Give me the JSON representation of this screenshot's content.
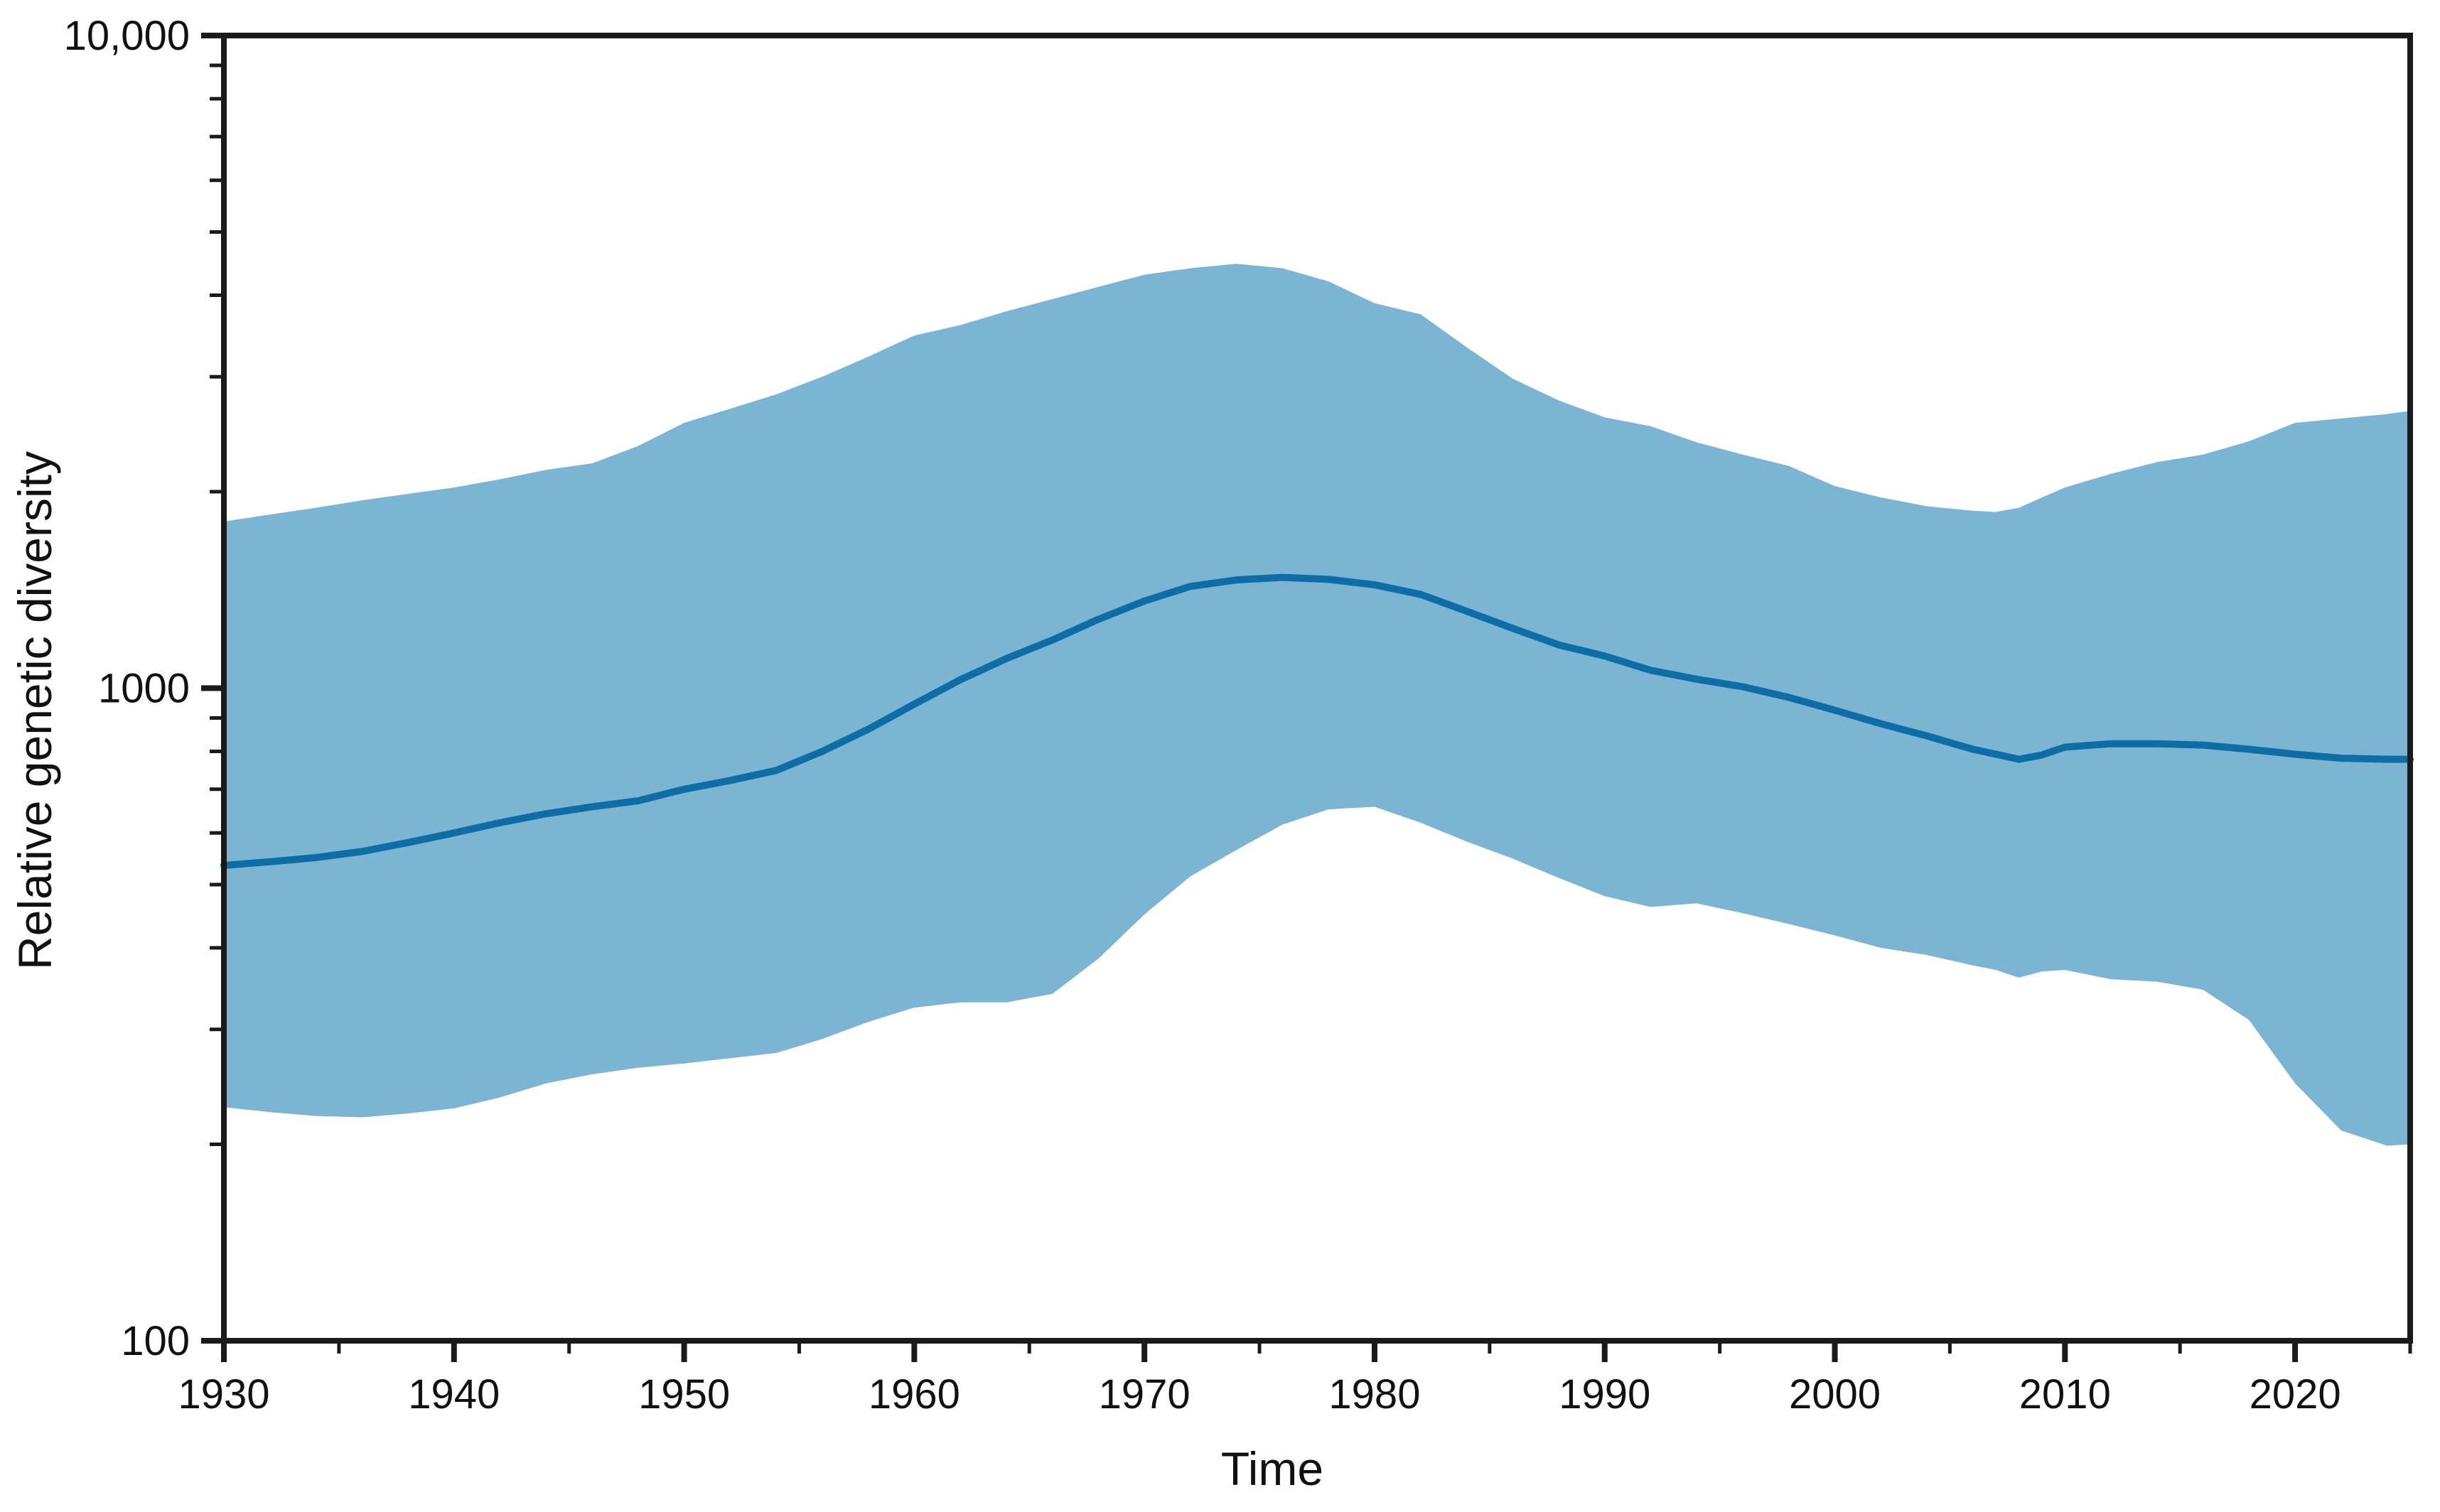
{
  "figure": {
    "background": "#ffffff"
  },
  "axes": {
    "x_title": "Time",
    "y_title": "Relative genetic diversity",
    "x_range": [
      1930,
      2025
    ],
    "y_scale": "log",
    "y_range": [
      100,
      10000
    ],
    "x_major_ticks": [
      1930,
      1940,
      1950,
      1960,
      1970,
      1980,
      1990,
      2000,
      2010,
      2020
    ],
    "x_minor_ticks": [
      1935,
      1945,
      1955,
      1965,
      1975,
      1985,
      1995,
      2005,
      2015,
      2025
    ],
    "y_major_ticks": [
      {
        "value": 100,
        "label": "100"
      },
      {
        "value": 1000,
        "label": "1000"
      },
      {
        "value": 10000,
        "label": "10,000"
      }
    ],
    "y_minor_ticks": [
      200,
      300,
      400,
      500,
      600,
      700,
      800,
      900,
      2000,
      3000,
      4000,
      5000,
      6000,
      7000,
      8000,
      9000
    ]
  },
  "colors": {
    "band": "#7cb5d4",
    "line": "#0e6da4",
    "axis": "#1a1a1a",
    "text": "#111111",
    "background": "#ffffff"
  },
  "chart_data": {
    "type": "area",
    "title": "",
    "xlabel": "Time",
    "ylabel": "Relative genetic diversity",
    "x_axis_scale": "linear",
    "y_axis_scale": "log",
    "xlim": [
      1930,
      2025
    ],
    "ylim": [
      100,
      10000
    ],
    "grid": false,
    "legend": "none",
    "description": "Median relative genetic diversity over time with a shaded confidence band (log y-axis)",
    "x": [
      1930,
      1932,
      1934,
      1936,
      1938,
      1940,
      1942,
      1944,
      1946,
      1948,
      1950,
      1952,
      1954,
      1956,
      1958,
      1960,
      1962,
      1964,
      1966,
      1968,
      1970,
      1972,
      1974,
      1976,
      1978,
      1980,
      1982,
      1984,
      1986,
      1988,
      1990,
      1992,
      1994,
      1996,
      1998,
      2000,
      2002,
      2004,
      2006,
      2007,
      2008,
      2009,
      2010,
      2012,
      2014,
      2016,
      2018,
      2020,
      2022,
      2024,
      2025
    ],
    "series": [
      {
        "name": "median",
        "values": [
          535,
          542,
          550,
          562,
          580,
          600,
          622,
          642,
          658,
          672,
          700,
          722,
          748,
          800,
          865,
          945,
          1030,
          1110,
          1185,
          1275,
          1360,
          1432,
          1465,
          1478,
          1468,
          1440,
          1392,
          1312,
          1235,
          1165,
          1120,
          1065,
          1032,
          1005,
          968,
          925,
          882,
          845,
          806,
          792,
          778,
          790,
          812,
          822,
          822,
          818,
          806,
          792,
          781,
          778,
          778
        ]
      },
      {
        "name": "ci_upper",
        "values": [
          1800,
          1845,
          1890,
          1940,
          1985,
          2030,
          2090,
          2160,
          2210,
          2350,
          2550,
          2680,
          2820,
          3000,
          3220,
          3470,
          3600,
          3780,
          3945,
          4120,
          4300,
          4400,
          4470,
          4400,
          4200,
          3890,
          3740,
          3330,
          2980,
          2760,
          2600,
          2520,
          2380,
          2280,
          2190,
          2040,
          1960,
          1900,
          1870,
          1862,
          1890,
          1960,
          2030,
          2130,
          2220,
          2280,
          2390,
          2550,
          2590,
          2630,
          2660
        ]
      },
      {
        "name": "ci_lower",
        "values": [
          228,
          224,
          221,
          220,
          223,
          227,
          236,
          248,
          256,
          262,
          266,
          271,
          276,
          290,
          308,
          324,
          330,
          330,
          340,
          385,
          450,
          515,
          565,
          618,
          652,
          658,
          622,
          582,
          548,
          512,
          480,
          462,
          468,
          452,
          435,
          418,
          400,
          390,
          376,
          370,
          360,
          368,
          370,
          358,
          355,
          345,
          310,
          248,
          210,
          199,
          200
        ]
      }
    ]
  }
}
